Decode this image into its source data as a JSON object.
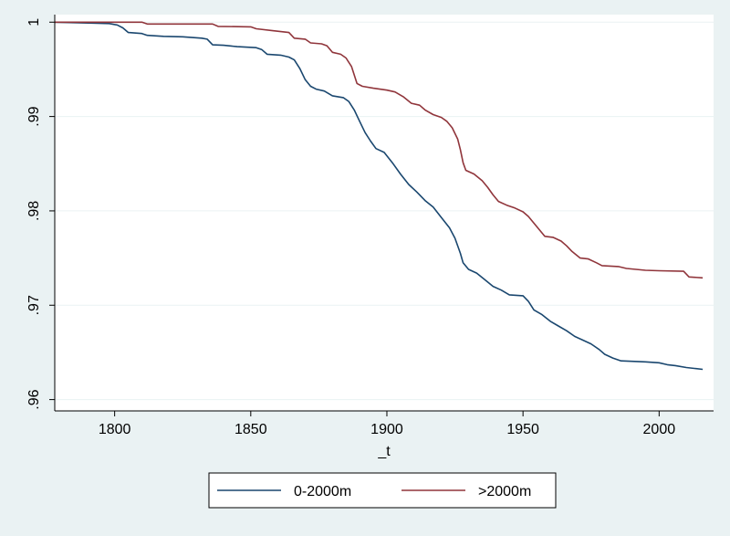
{
  "chart_data": {
    "type": "line",
    "xlabel": "_t",
    "ylabel": "",
    "xlim": [
      1778,
      2020
    ],
    "ylim": [
      0.9588,
      1.0008
    ],
    "x_ticks": [
      1800,
      1850,
      1900,
      1950,
      2000
    ],
    "x_tick_labels": [
      "1800",
      "1850",
      "1900",
      "1950",
      "2000"
    ],
    "y_ticks": [
      0.96,
      0.97,
      0.98,
      0.99,
      1
    ],
    "y_tick_labels": [
      ".96",
      ".97",
      ".98",
      ".99",
      "1"
    ],
    "grid": true,
    "legend_position": "bottom",
    "series": [
      {
        "name": "0-2000m",
        "color": "#1a476f",
        "points": [
          [
            1778,
            1.0
          ],
          [
            1785,
            0.99995
          ],
          [
            1792,
            0.9999
          ],
          [
            1798,
            0.99985
          ],
          [
            1801,
            0.9997
          ],
          [
            1803,
            0.9994
          ],
          [
            1805,
            0.9989
          ],
          [
            1810,
            0.9988
          ],
          [
            1812,
            0.9986
          ],
          [
            1818,
            0.9985
          ],
          [
            1825,
            0.99845
          ],
          [
            1832,
            0.9983
          ],
          [
            1834,
            0.9982
          ],
          [
            1836,
            0.9976
          ],
          [
            1840,
            0.99755
          ],
          [
            1845,
            0.9974
          ],
          [
            1852,
            0.9973
          ],
          [
            1854,
            0.9971
          ],
          [
            1856,
            0.9966
          ],
          [
            1861,
            0.9965
          ],
          [
            1864,
            0.9963
          ],
          [
            1866,
            0.996
          ],
          [
            1868,
            0.9951
          ],
          [
            1870,
            0.9939
          ],
          [
            1872,
            0.9932
          ],
          [
            1874,
            0.9929
          ],
          [
            1877,
            0.9927
          ],
          [
            1880,
            0.9922
          ],
          [
            1884,
            0.992
          ],
          [
            1886,
            0.9916
          ],
          [
            1888,
            0.9907
          ],
          [
            1890,
            0.9895
          ],
          [
            1892,
            0.9883
          ],
          [
            1894,
            0.9874
          ],
          [
            1896,
            0.9866
          ],
          [
            1899,
            0.9862
          ],
          [
            1902,
            0.9851
          ],
          [
            1905,
            0.9839
          ],
          [
            1908,
            0.9828
          ],
          [
            1911,
            0.982
          ],
          [
            1914,
            0.9811
          ],
          [
            1917,
            0.9804
          ],
          [
            1920,
            0.9793
          ],
          [
            1923,
            0.9782
          ],
          [
            1925,
            0.9771
          ],
          [
            1927,
            0.9755
          ],
          [
            1928,
            0.9745
          ],
          [
            1930,
            0.9738
          ],
          [
            1933,
            0.9734
          ],
          [
            1936,
            0.9727
          ],
          [
            1939,
            0.972
          ],
          [
            1942,
            0.9716
          ],
          [
            1945,
            0.9711
          ],
          [
            1950,
            0.971
          ],
          [
            1952,
            0.9704
          ],
          [
            1954,
            0.9695
          ],
          [
            1957,
            0.969
          ],
          [
            1960,
            0.9683
          ],
          [
            1963,
            0.9678
          ],
          [
            1966,
            0.9673
          ],
          [
            1969,
            0.9667
          ],
          [
            1972,
            0.9663
          ],
          [
            1975,
            0.9659
          ],
          [
            1978,
            0.9653
          ],
          [
            1980,
            0.9648
          ],
          [
            1983,
            0.9644
          ],
          [
            1986,
            0.9641
          ],
          [
            1995,
            0.964
          ],
          [
            2000,
            0.9639
          ],
          [
            2003,
            0.9637
          ],
          [
            2006,
            0.9636
          ],
          [
            2010,
            0.9634
          ],
          [
            2013,
            0.9633
          ],
          [
            2016,
            0.9632
          ]
        ]
      },
      {
        "name": ">2000m",
        "color": "#90353b",
        "points": [
          [
            1778,
            1.0
          ],
          [
            1810,
            1.0
          ],
          [
            1812,
            0.9998
          ],
          [
            1836,
            0.9998
          ],
          [
            1838,
            0.99955
          ],
          [
            1850,
            0.9995
          ],
          [
            1852,
            0.9993
          ],
          [
            1858,
            0.9991
          ],
          [
            1864,
            0.9989
          ],
          [
            1866,
            0.9983
          ],
          [
            1870,
            0.9982
          ],
          [
            1872,
            0.9978
          ],
          [
            1876,
            0.9977
          ],
          [
            1878,
            0.9975
          ],
          [
            1880,
            0.9968
          ],
          [
            1883,
            0.9966
          ],
          [
            1885,
            0.9962
          ],
          [
            1887,
            0.9953
          ],
          [
            1889,
            0.9935
          ],
          [
            1891,
            0.9932
          ],
          [
            1895,
            0.993
          ],
          [
            1900,
            0.9928
          ],
          [
            1903,
            0.9926
          ],
          [
            1906,
            0.9921
          ],
          [
            1909,
            0.9914
          ],
          [
            1912,
            0.9912
          ],
          [
            1914,
            0.9907
          ],
          [
            1917,
            0.9902
          ],
          [
            1920,
            0.9899
          ],
          [
            1922,
            0.9895
          ],
          [
            1924,
            0.9888
          ],
          [
            1926,
            0.9876
          ],
          [
            1927,
            0.9865
          ],
          [
            1928,
            0.9851
          ],
          [
            1929,
            0.9843
          ],
          [
            1932,
            0.9839
          ],
          [
            1935,
            0.9832
          ],
          [
            1937,
            0.9825
          ],
          [
            1939,
            0.9817
          ],
          [
            1941,
            0.981
          ],
          [
            1944,
            0.9806
          ],
          [
            1947,
            0.9803
          ],
          [
            1950,
            0.9799
          ],
          [
            1952,
            0.9794
          ],
          [
            1954,
            0.9787
          ],
          [
            1956,
            0.978
          ],
          [
            1958,
            0.9773
          ],
          [
            1961,
            0.9772
          ],
          [
            1964,
            0.9768
          ],
          [
            1966,
            0.9763
          ],
          [
            1968,
            0.9757
          ],
          [
            1971,
            0.975
          ],
          [
            1974,
            0.9749
          ],
          [
            1977,
            0.9745
          ],
          [
            1979,
            0.9742
          ],
          [
            1985,
            0.9741
          ],
          [
            1988,
            0.9739
          ],
          [
            1995,
            0.9737
          ],
          [
            2000,
            0.97365
          ],
          [
            2009,
            0.9736
          ],
          [
            2011,
            0.973
          ],
          [
            2016,
            0.9729
          ]
        ]
      }
    ]
  }
}
